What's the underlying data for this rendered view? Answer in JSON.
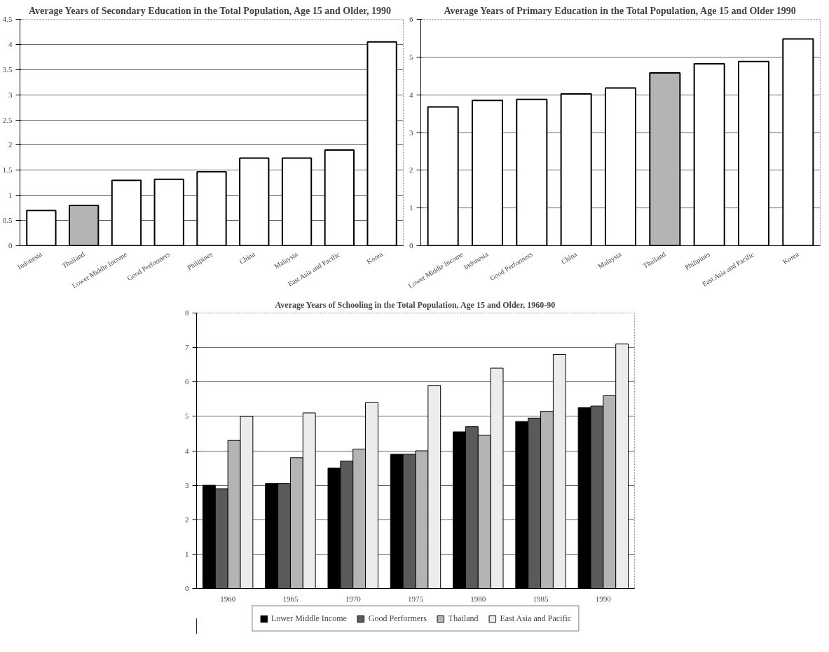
{
  "chart_data": [
    {
      "type": "bar",
      "title": "Average Years of Secondary Education in the Total Population,  Age 15 and Older, 1990",
      "categories": [
        "Indonesia",
        "Thailand",
        "Lower Middle Income",
        "Good Performers",
        "Philipines",
        "China",
        "Malaysia",
        "East Asia and Pacific",
        "Korea"
      ],
      "values": [
        0.7,
        0.8,
        1.3,
        1.32,
        1.47,
        1.74,
        1.74,
        1.9,
        4.05
      ],
      "colors": [
        "#ffffff",
        "#b4b4b4",
        "#ffffff",
        "#ffffff",
        "#ffffff",
        "#ffffff",
        "#ffffff",
        "#ffffff",
        "#ffffff"
      ],
      "ylim": [
        0,
        4.5
      ],
      "yticks": [
        0,
        0.5,
        1,
        1.5,
        2,
        2.5,
        3,
        3.5,
        4,
        4.5
      ],
      "grid": "y"
    },
    {
      "type": "bar",
      "title": "Average Years of Primary Education in the Total Population, Age 15 and Older 1990",
      "categories": [
        "Lower Middle Income",
        "Indonesia",
        "Good Performers",
        "China",
        "Malaysia",
        "Thailand",
        "Philipines",
        "East Asia and Pacific",
        "Korea"
      ],
      "values": [
        3.68,
        3.85,
        3.88,
        4.02,
        4.18,
        4.58,
        4.82,
        4.88,
        5.48
      ],
      "colors": [
        "#ffffff",
        "#ffffff",
        "#ffffff",
        "#ffffff",
        "#ffffff",
        "#b4b4b4",
        "#ffffff",
        "#ffffff",
        "#ffffff"
      ],
      "ylim": [
        0,
        6
      ],
      "yticks": [
        0,
        1,
        2,
        3,
        4,
        5,
        6
      ],
      "grid": "y"
    },
    {
      "type": "bar",
      "title": "Average Years of Schooling in the Total Population, Age 15 and Older, 1960-90",
      "categories": [
        "1960",
        "1965",
        "1970",
        "1975",
        "1980",
        "1985",
        "1990"
      ],
      "series": [
        {
          "name": "Lower Middle Income",
          "color": "#000000",
          "values": [
            3.0,
            3.05,
            3.5,
            3.9,
            4.55,
            4.85,
            5.25
          ]
        },
        {
          "name": "Good Performers",
          "color": "#5a5a5a",
          "values": [
            2.9,
            3.05,
            3.7,
            3.9,
            4.7,
            4.95,
            5.3
          ]
        },
        {
          "name": "Thailand",
          "color": "#b4b4b4",
          "values": [
            4.3,
            3.8,
            4.05,
            4.0,
            4.45,
            5.15,
            5.6
          ]
        },
        {
          "name": "East Asia and Pacific",
          "color": "#ececec",
          "values": [
            5.0,
            5.1,
            5.4,
            5.9,
            6.4,
            6.8,
            7.1
          ]
        }
      ],
      "ylim": [
        0,
        8
      ],
      "yticks": [
        0,
        1,
        2,
        3,
        4,
        5,
        6,
        7,
        8
      ],
      "grid": "y",
      "legend": "bottom"
    }
  ]
}
